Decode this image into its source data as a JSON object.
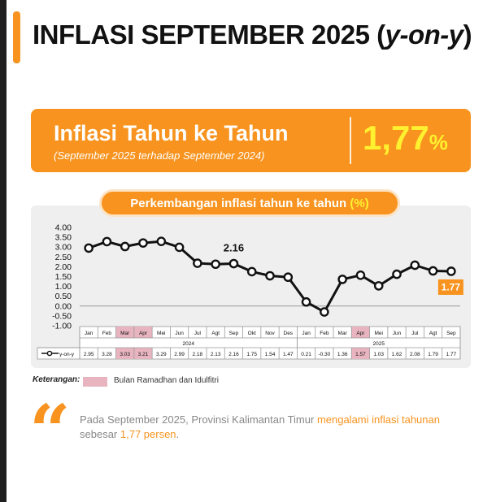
{
  "header": {
    "title_main": "INFLASI SEPTEMBER 2025 (",
    "title_italic": "y-on-y",
    "title_end": ")"
  },
  "banner": {
    "title": "Inflasi Tahun ke Tahun",
    "subtitle": "(September 2025 terhadap September 2024)",
    "value": "1,77",
    "unit": "%"
  },
  "chart_pill": {
    "text": "Perkembangan inflasi tahun ke tahun ",
    "unit": "(%)"
  },
  "legend": {
    "label": "Keterangan:",
    "item": "Bulan Ramadhan dan Idulfitri",
    "highlight_color": "#e8b4c0"
  },
  "quote": {
    "part1": "Pada September 2025, Provinsi Kalimantan Timur ",
    "part2": "mengalami inflasi tahunan",
    "part3": " sebesar ",
    "part4": "1,77 persen",
    "part5": "."
  },
  "colors": {
    "accent": "#f7931e",
    "value_yellow": "#fff12f",
    "line": "#111111",
    "chart_bg": "#efefef"
  },
  "chart_data": {
    "type": "line",
    "title": "Perkembangan inflasi tahun ke tahun (%)",
    "categories": [
      "Jan",
      "Feb",
      "Mar",
      "Apr",
      "Mei",
      "Jun",
      "Jul",
      "Agt",
      "Sep",
      "Okt",
      "Nov",
      "Des",
      "Jan",
      "Feb",
      "Mar",
      "Apr",
      "Mei",
      "Jun",
      "Jul",
      "Agt",
      "Sep"
    ],
    "year_groups": [
      {
        "label": "2024",
        "start": 0,
        "end": 11
      },
      {
        "label": "2025",
        "start": 12,
        "end": 20
      }
    ],
    "series": [
      {
        "name": "y-on-y",
        "values": [
          2.95,
          3.28,
          3.03,
          3.21,
          3.29,
          2.99,
          2.18,
          2.13,
          2.16,
          1.75,
          1.54,
          1.47,
          0.21,
          -0.3,
          1.36,
          1.57,
          1.03,
          1.62,
          2.08,
          1.79,
          1.77
        ],
        "table_labels": [
          "2.95",
          "3.28",
          "3.03",
          "3.21",
          "3.29",
          "2.99",
          "2.18",
          "2.13",
          "2.16",
          "1.75",
          "1.54",
          "1.47",
          "0.21",
          "-0.30",
          "1.36",
          "1.57",
          "1.03",
          "1.62",
          "2.08",
          "1.79",
          "1.77"
        ]
      }
    ],
    "highlighted_months": [
      2,
      3,
      15
    ],
    "y_ticks": [
      "4.00",
      "3.50",
      "3.00",
      "2.50",
      "2.00",
      "1.50",
      "1.00",
      "0.50",
      "0.00",
      "-0.50",
      "-1.00"
    ],
    "ylim": [
      -1.0,
      4.0
    ],
    "annotations": [
      {
        "index": 8,
        "text": "2.16"
      },
      {
        "index": 20,
        "text": "1.77",
        "boxed": true
      }
    ],
    "grid": false,
    "legend": "table-row"
  }
}
